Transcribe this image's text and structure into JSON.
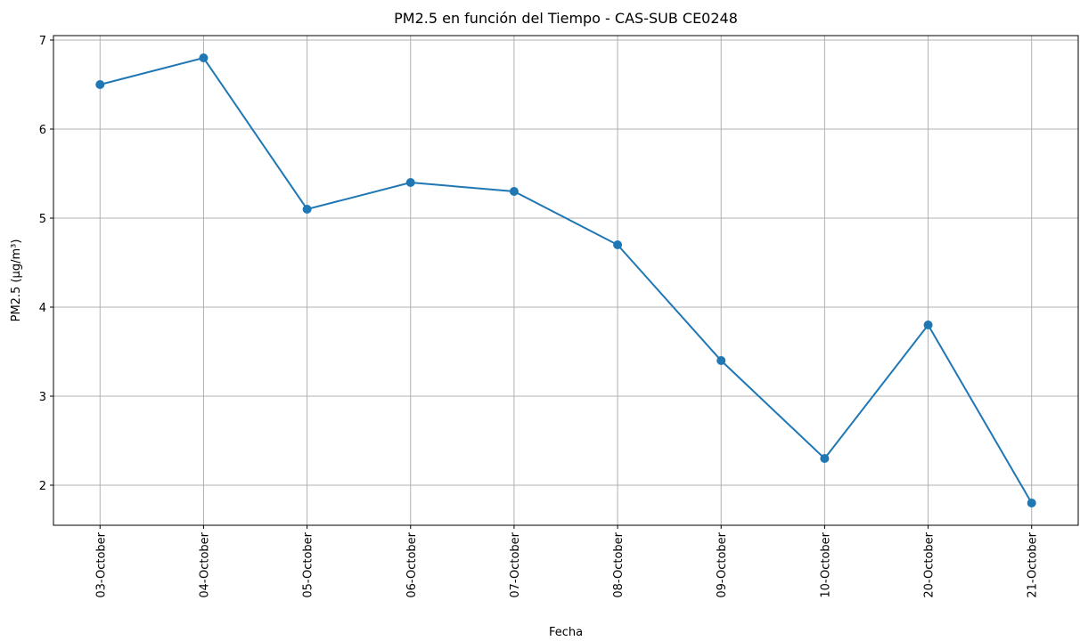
{
  "chart_data": {
    "type": "line",
    "title": "PM2.5 en función del Tiempo - CAS-SUB CE0248",
    "x_label": "Fecha",
    "y_label": "PM2.5 (µg/m³)",
    "categories": [
      "03-October",
      "04-October",
      "05-October",
      "06-October",
      "07-October",
      "08-October",
      "09-October",
      "10-October",
      "20-October",
      "21-October"
    ],
    "values": [
      6.5,
      6.8,
      5.1,
      5.4,
      5.3,
      4.7,
      3.4,
      2.3,
      3.8,
      1.8
    ],
    "color": "#1f77b4",
    "markers": true,
    "ylim": [
      1.55,
      7.05
    ],
    "yticks": [
      2,
      3,
      4,
      5,
      6,
      7
    ],
    "grid": true
  }
}
